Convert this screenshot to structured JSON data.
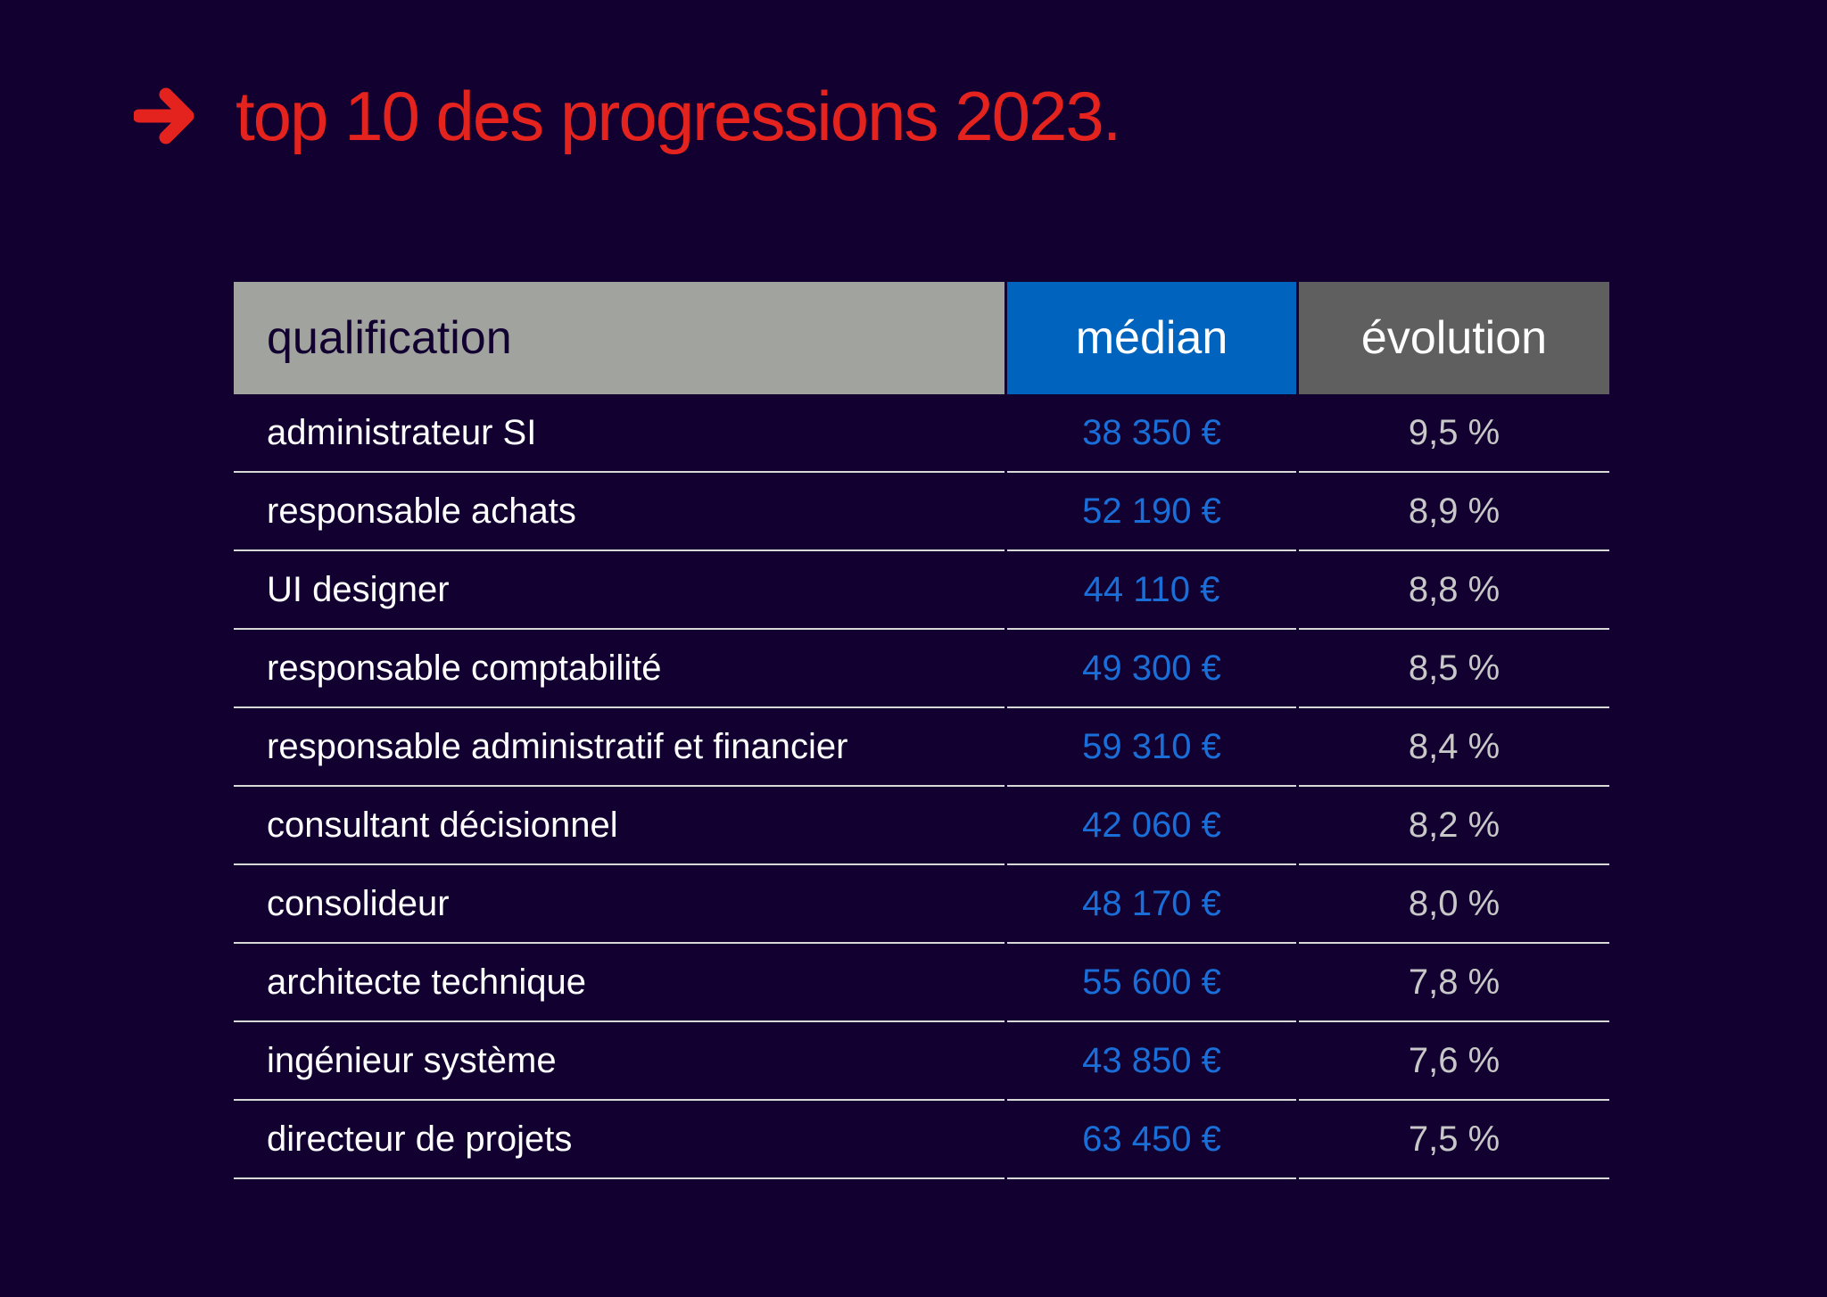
{
  "title": "top 10 des progressions 2023.",
  "icons": {
    "arrow": "arrow-right-icon"
  },
  "colors": {
    "background": "#120030",
    "title": "#e4231f",
    "median": "#1a6ed8",
    "header_qualification": "#a0a39e",
    "header_median": "#0063bd",
    "header_evolution": "#5f5f5f"
  },
  "chart_data": {
    "type": "table",
    "columns": [
      "qualification",
      "médian",
      "évolution"
    ],
    "rows": [
      [
        "administrateur SI",
        "38 350 €",
        "9,5 %"
      ],
      [
        "responsable achats",
        "52 190 €",
        "8,9 %"
      ],
      [
        "UI designer",
        "44 110 €",
        "8,8 %"
      ],
      [
        "responsable comptabilité",
        "49 300 €",
        "8,5 %"
      ],
      [
        "responsable administratif et financier",
        "59 310 €",
        "8,4 %"
      ],
      [
        "consultant décisionnel",
        "42 060 €",
        "8,2 %"
      ],
      [
        "consolideur",
        "48 170 €",
        "8,0 %"
      ],
      [
        "architecte technique",
        "55 600 €",
        "7,8 %"
      ],
      [
        "ingénieur système",
        "43 850 €",
        "7,6 %"
      ],
      [
        "directeur de projets",
        "63 450 €",
        "7,5 %"
      ]
    ]
  }
}
